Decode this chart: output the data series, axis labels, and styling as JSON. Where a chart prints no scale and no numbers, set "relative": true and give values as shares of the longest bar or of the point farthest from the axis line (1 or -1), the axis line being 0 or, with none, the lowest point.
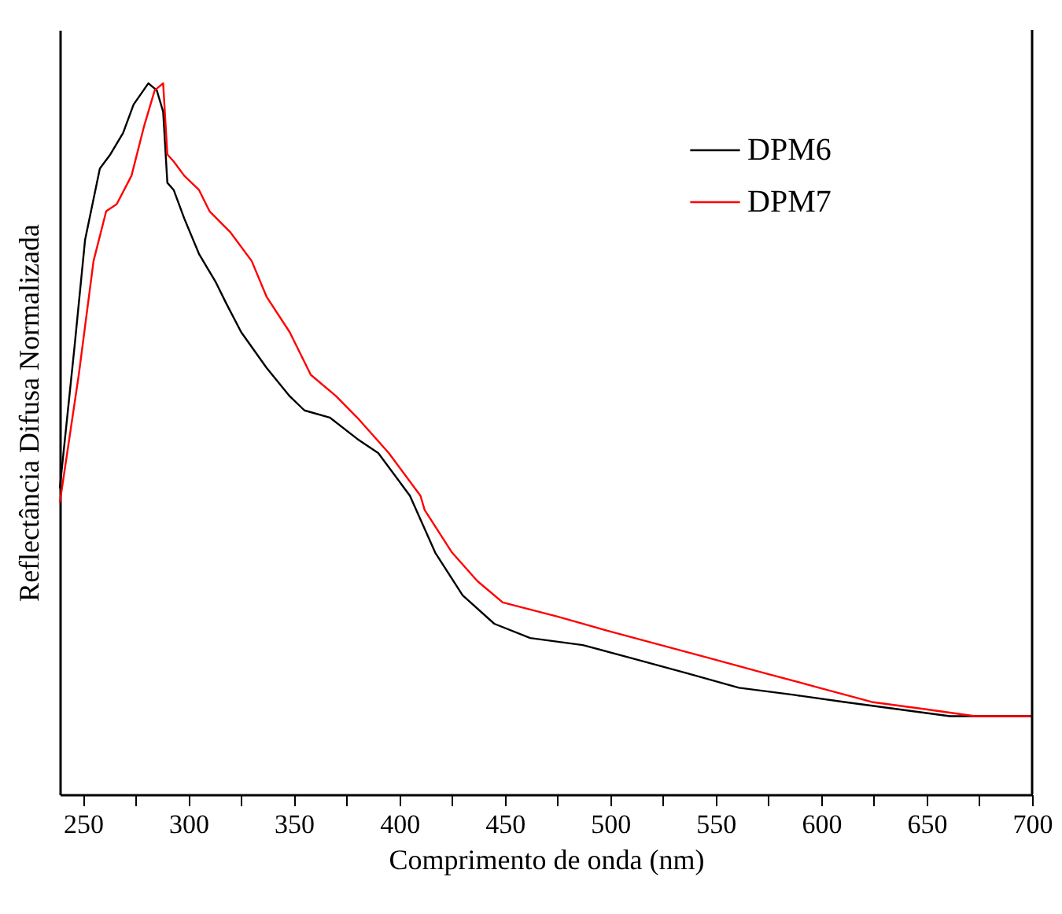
{
  "chart_data": {
    "type": "line",
    "xlabel": "Comprimento de onda (nm)",
    "ylabel": "Reflectância Difusa Normalizada",
    "relative": true,
    "legend": "top right",
    "xlim": [
      239,
      700
    ],
    "xticks": [
      250,
      {
        "value": 275,
        "label": null
      },
      300,
      {
        "value": 325,
        "label": null
      },
      350,
      {
        "value": 375,
        "label": null
      },
      400,
      {
        "value": 425,
        "label": null
      },
      450,
      {
        "value": 475,
        "label": null
      },
      500,
      {
        "value": 525,
        "label": null
      },
      550,
      {
        "value": 575,
        "label": null
      },
      600,
      {
        "value": 625,
        "label": null
      },
      650,
      {
        "value": 675,
        "label": null
      },
      700
    ],
    "series": [
      {
        "name": "DPM6",
        "color": "#000000",
        "x": [
          239,
          246,
          251,
          258,
          263,
          269,
          274,
          281,
          285,
          288,
          290,
          293,
          298,
          305,
          313,
          318,
          325,
          337,
          348,
          355,
          367,
          380,
          390,
          405,
          417,
          430,
          445,
          462,
          487,
          512,
          537,
          561,
          587,
          611,
          636,
          661,
          700
        ],
        "values": [
          0.43,
          0.63,
          0.78,
          0.88,
          0.9,
          0.93,
          0.97,
          1.0,
          0.99,
          0.96,
          0.86,
          0.85,
          0.81,
          0.76,
          0.72,
          0.69,
          0.65,
          0.6,
          0.56,
          0.54,
          0.53,
          0.5,
          0.48,
          0.42,
          0.34,
          0.28,
          0.24,
          0.22,
          0.21,
          0.19,
          0.17,
          0.15,
          0.14,
          0.13,
          0.12,
          0.11,
          0.11
        ]
      },
      {
        "name": "DPM7",
        "color": "#ff0000",
        "x": [
          239,
          248,
          255,
          261,
          266,
          273,
          279,
          284,
          288,
          290,
          293,
          298,
          305,
          310,
          320,
          330,
          337,
          348,
          358,
          370,
          380,
          395,
          410,
          412,
          425,
          437,
          449,
          475,
          499,
          524,
          549,
          574,
          599,
          624,
          649,
          673,
          700
        ],
        "values": [
          0.41,
          0.59,
          0.75,
          0.82,
          0.83,
          0.87,
          0.94,
          0.99,
          1.0,
          0.9,
          0.89,
          0.87,
          0.85,
          0.82,
          0.79,
          0.75,
          0.7,
          0.65,
          0.59,
          0.56,
          0.53,
          0.48,
          0.42,
          0.4,
          0.34,
          0.3,
          0.27,
          0.25,
          0.23,
          0.21,
          0.19,
          0.17,
          0.15,
          0.13,
          0.12,
          0.11,
          0.11
        ]
      }
    ]
  }
}
